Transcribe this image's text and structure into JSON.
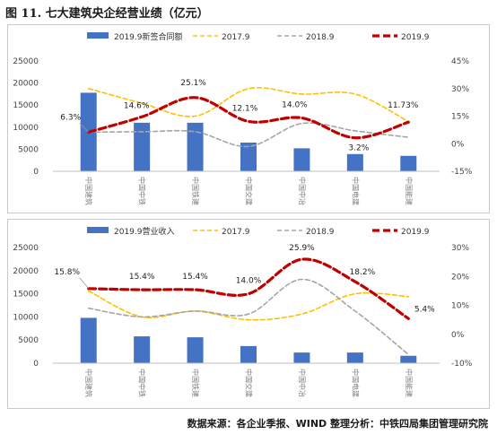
{
  "title": "图 11. 七大建筑央企经营业绩（亿元）",
  "source": "数据来源：各企业季报、WIND 整理分析：中铁四局集团管理研究院",
  "colors": {
    "bar": "#4472c4",
    "line_2017": "#ffc000",
    "line_2018": "#a5a5a5",
    "line_2019": "#c00000"
  },
  "chart_data": [
    {
      "type": "bar",
      "categories": [
        "中国建筑",
        "中国中铁",
        "中国铁建",
        "中国交建",
        "中国中冶",
        "中国电建",
        "中国能建"
      ],
      "ylim": [
        0,
        25000
      ],
      "yticks": [
        0,
        5000,
        10000,
        15000,
        20000,
        25000
      ],
      "y2lim": [
        -15,
        45
      ],
      "y2ticks": [
        "-15%",
        "0%",
        "15%",
        "30%",
        "45%"
      ],
      "grid": false,
      "legend_position": "top",
      "series": [
        {
          "name": "2019.9新签合同额",
          "type": "bar",
          "axis": "left",
          "values": [
            17800,
            11000,
            11000,
            6500,
            5200,
            3900,
            3500
          ]
        },
        {
          "name": "2017.9",
          "type": "line",
          "axis": "right",
          "values": [
            30,
            22,
            15,
            30,
            27,
            27,
            12
          ]
        },
        {
          "name": "2018.9",
          "type": "line",
          "axis": "right",
          "values": [
            6.3,
            6.5,
            6.5,
            -1.5,
            11,
            7,
            3.5
          ]
        },
        {
          "name": "2019.9",
          "type": "line",
          "axis": "right",
          "values": [
            6.3,
            14.6,
            25.1,
            12.1,
            14.0,
            3.2,
            11.73
          ]
        }
      ],
      "labels": [
        "6.3%",
        "14.6%",
        "25.1%",
        "12.1%",
        "14.0%",
        "3.2%",
        "11.73%"
      ]
    },
    {
      "type": "bar",
      "categories": [
        "中国建筑",
        "中国中铁",
        "中国铁建",
        "中国交建",
        "中国中冶",
        "中国电建",
        "中国能建"
      ],
      "ylim": [
        0,
        25000
      ],
      "yticks": [
        0,
        5000,
        10000,
        15000,
        20000,
        25000
      ],
      "y2lim": [
        -10,
        30
      ],
      "y2ticks": [
        "-10%",
        "0%",
        "10%",
        "20%",
        "30%"
      ],
      "grid": false,
      "legend_position": "top",
      "series": [
        {
          "name": "2019.9营业收入",
          "type": "bar",
          "axis": "left",
          "values": [
            9800,
            5800,
            5600,
            3700,
            2300,
            2300,
            1600
          ]
        },
        {
          "name": "2017.9",
          "type": "line",
          "axis": "right",
          "values": [
            15,
            6,
            8,
            5,
            7,
            14,
            13
          ]
        },
        {
          "name": "2018.9",
          "type": "line",
          "axis": "right",
          "values": [
            9,
            6,
            8,
            7,
            19,
            8,
            -7
          ]
        },
        {
          "name": "2019.9",
          "type": "line",
          "axis": "right",
          "values": [
            15.8,
            15.4,
            15.4,
            14.0,
            25.9,
            18.2,
            5.4
          ]
        }
      ],
      "labels": [
        "15.8%",
        "15.4%",
        "15.4%",
        "14.0%",
        "25.9%",
        "18.2%",
        "5.4%"
      ]
    }
  ]
}
